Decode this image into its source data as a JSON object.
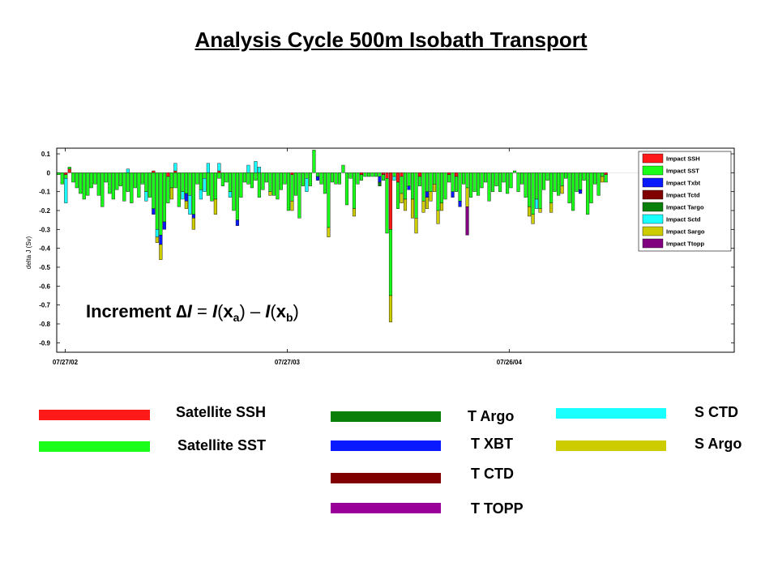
{
  "page": {
    "title": "Analysis Cycle 500m Isobath Transport"
  },
  "chart_data": {
    "type": "bar",
    "stacked": true,
    "ylabel": "delta J (Sv)",
    "ylim": [
      -0.95,
      0.13
    ],
    "yticks": [
      "0.1",
      "0",
      "-0.1",
      "-0.2",
      "-0.3",
      "-0.4",
      "-0.5",
      "-0.6",
      "-0.7",
      "-0.8",
      "-0.9"
    ],
    "xticks": [
      "07/27/02",
      "07/27/03",
      "07/26/04"
    ],
    "annotation": {
      "prefix": "Increment ",
      "delta": "∆",
      "I1": "I",
      "eq": " = ",
      "I2": "I",
      "lp1": "(",
      "xa": "x",
      "sub_a": "a",
      "rp1": ")",
      "minus": " – ",
      "I3": "I",
      "lp2": "(",
      "xb": "x",
      "sub_b": "b",
      "rp2": ")"
    },
    "legend_position": "top-right",
    "series": [
      {
        "name": "Impact SSH",
        "color": "#ff1a1a"
      },
      {
        "name": "Impact SST",
        "color": "#1aff1a"
      },
      {
        "name": "Impact Txbt",
        "color": "#0a1aff"
      },
      {
        "name": "Impact Tctd",
        "color": "#800000"
      },
      {
        "name": "Impact Targo",
        "color": "#0a800a"
      },
      {
        "name": "Impact Sctd",
        "color": "#1affff"
      },
      {
        "name": "Impact Sargo",
        "color": "#cccc00"
      },
      {
        "name": "Impact Ttopp",
        "color": "#800080"
      }
    ],
    "x_start": "2002-07-13",
    "x_end": "2005-07-31",
    "bar_days": 6,
    "bars": [
      {
        "date": "2002-07-13",
        "SST": -0.01
      },
      {
        "date": "2002-07-19",
        "SST": -0.06
      },
      {
        "date": "2002-07-25",
        "SST": -0.02,
        "Sctd": -0.13,
        "SSH": -0.01
      },
      {
        "date": "2002-07-31",
        "SST": 0.01,
        "SSH": 0.02
      },
      {
        "date": "2002-08-06",
        "SST": -0.05
      },
      {
        "date": "2002-08-12",
        "SST": -0.08
      },
      {
        "date": "2002-08-18",
        "SST": -0.11
      },
      {
        "date": "2002-08-24",
        "SST": -0.14
      },
      {
        "date": "2002-08-30",
        "SST": -0.12
      },
      {
        "date": "2002-09-05",
        "SST": -0.08
      },
      {
        "date": "2002-09-11",
        "SST": -0.06
      },
      {
        "date": "2002-09-17",
        "SST": -0.12
      },
      {
        "date": "2002-09-23",
        "SST": -0.18
      },
      {
        "date": "2002-09-29",
        "SST": -0.05
      },
      {
        "date": "2002-10-05",
        "SST": -0.11
      },
      {
        "date": "2002-10-11",
        "SST": -0.14
      },
      {
        "date": "2002-10-17",
        "SST": -0.09
      },
      {
        "date": "2002-10-23",
        "SST": -0.07
      },
      {
        "date": "2002-10-29",
        "SST": -0.15
      },
      {
        "date": "2002-11-04",
        "SST": -0.1,
        "Sctd": 0.02
      },
      {
        "date": "2002-11-10",
        "SST": -0.16
      },
      {
        "date": "2002-11-16",
        "SST": -0.08
      },
      {
        "date": "2002-11-22",
        "SST": -0.13
      },
      {
        "date": "2002-11-28",
        "SST": -0.06
      },
      {
        "date": "2002-12-04",
        "SST": -0.1,
        "Sctd": -0.05
      },
      {
        "date": "2002-12-10",
        "SST": -0.13
      },
      {
        "date": "2002-12-16",
        "SST": -0.19,
        "Txbt": -0.03,
        "SSH": 0.01
      },
      {
        "date": "2002-12-22",
        "SST": -0.3,
        "Sctd": -0.04,
        "Sargo": -0.03
      },
      {
        "date": "2002-12-28",
        "SST": -0.33,
        "Txbt": -0.05,
        "Sargo": -0.08
      },
      {
        "date": "2003-01-03",
        "SST": -0.26,
        "Txbt": -0.04
      },
      {
        "date": "2003-01-09",
        "SST": -0.14,
        "SSH": -0.02
      },
      {
        "date": "2003-01-15",
        "SST": -0.08,
        "Sargo": -0.06
      },
      {
        "date": "2003-01-21",
        "SST": -0.08,
        "Sctd": 0.04,
        "SSH": 0.01
      },
      {
        "date": "2003-01-27",
        "SST": -0.18
      },
      {
        "date": "2003-02-02",
        "SST": -0.1,
        "Sctd": -0.04
      },
      {
        "date": "2003-02-08",
        "SST": -0.11,
        "Txbt": -0.04,
        "Sargo": -0.04
      },
      {
        "date": "2003-02-14",
        "SST": -0.12,
        "Sctd": -0.1
      },
      {
        "date": "2003-02-20",
        "SST": -0.22,
        "Txbt": -0.02,
        "Sargo": -0.06
      },
      {
        "date": "2003-02-26",
        "SST": -0.06
      },
      {
        "date": "2003-03-04",
        "SST": -0.09,
        "Sctd": -0.05
      },
      {
        "date": "2003-03-10",
        "SST": -0.03,
        "Sctd": -0.07
      },
      {
        "date": "2003-03-16",
        "SST": -0.12,
        "Sctd": 0.05
      },
      {
        "date": "2003-03-22",
        "SST": -0.15
      },
      {
        "date": "2003-03-28",
        "SST": -0.14,
        "Sargo": -0.08
      },
      {
        "date": "2003-04-03",
        "SST": -0.03,
        "Sctd": 0.04,
        "SSH": 0.01
      },
      {
        "date": "2003-04-09",
        "SST": -0.07
      },
      {
        "date": "2003-04-15",
        "SST": -0.05
      },
      {
        "date": "2003-04-21",
        "SST": -0.1,
        "Sctd": -0.03
      },
      {
        "date": "2003-04-27",
        "SST": -0.2
      },
      {
        "date": "2003-05-03",
        "SST": -0.25,
        "Txbt": -0.03
      },
      {
        "date": "2003-05-09",
        "SST": -0.13
      },
      {
        "date": "2003-05-15",
        "SST": -0.05
      },
      {
        "date": "2003-05-21",
        "SST": -0.06,
        "Sctd": 0.04
      },
      {
        "date": "2003-05-27",
        "SST": -0.08
      },
      {
        "date": "2003-06-02",
        "SST": -0.04,
        "Sctd": 0.06
      },
      {
        "date": "2003-06-08",
        "SST": -0.13,
        "Sctd": 0.03
      },
      {
        "date": "2003-06-14",
        "SST": -0.09
      },
      {
        "date": "2003-06-20",
        "SST": -0.05
      },
      {
        "date": "2003-06-26",
        "SST": -0.1,
        "Sargo": -0.02
      },
      {
        "date": "2003-07-02",
        "SST": -0.12
      },
      {
        "date": "2003-07-08",
        "SST": -0.14
      },
      {
        "date": "2003-07-14",
        "SST": -0.09
      },
      {
        "date": "2003-07-20",
        "SST": -0.06
      },
      {
        "date": "2003-07-26",
        "SST": -0.2
      },
      {
        "date": "2003-08-01",
        "SST": -0.14,
        "Sargo": -0.05,
        "SSH": -0.01
      },
      {
        "date": "2003-08-07",
        "SST": -0.12
      },
      {
        "date": "2003-08-13",
        "SST": -0.24
      },
      {
        "date": "2003-08-19",
        "SST": -0.07
      },
      {
        "date": "2003-08-25",
        "SST": -0.03,
        "Sctd": -0.07
      },
      {
        "date": "2003-08-31",
        "SST": -0.07
      },
      {
        "date": "2003-09-06",
        "SST": 0.12
      },
      {
        "date": "2003-09-12",
        "SST": -0.02,
        "Txbt": -0.02
      },
      {
        "date": "2003-09-18",
        "SST": -0.06
      },
      {
        "date": "2003-09-24",
        "SST": -0.11
      },
      {
        "date": "2003-09-30",
        "SST": -0.29,
        "Sargo": -0.05
      },
      {
        "date": "2003-10-06",
        "SST": -0.05
      },
      {
        "date": "2003-10-12",
        "SST": -0.06
      },
      {
        "date": "2003-10-18",
        "SST": -0.06
      },
      {
        "date": "2003-10-24",
        "SST": 0.04
      },
      {
        "date": "2003-10-30",
        "SST": -0.17
      },
      {
        "date": "2003-11-05",
        "SST": -0.03
      },
      {
        "date": "2003-11-11",
        "SST": -0.19,
        "Sargo": -0.04
      },
      {
        "date": "2003-11-17",
        "SST": -0.06
      },
      {
        "date": "2003-11-23",
        "SST": -0.03,
        "SSH": -0.01
      },
      {
        "date": "2003-11-29",
        "SST": -0.02
      },
      {
        "date": "2003-12-05",
        "SST": -0.02
      },
      {
        "date": "2003-12-11",
        "SST": -0.02
      },
      {
        "date": "2003-12-17",
        "SST": -0.02
      },
      {
        "date": "2003-12-23",
        "SST": -0.02,
        "Txbt": -0.03,
        "Targo": -0.02
      },
      {
        "date": "2003-12-29",
        "SST": -0.03,
        "SSH": -0.01
      },
      {
        "date": "2004-01-04",
        "SST": -0.29,
        "SSH": -0.03
      },
      {
        "date": "2004-01-10",
        "SSH": -0.3,
        "SST": -0.35,
        "Sargo": -0.14
      },
      {
        "date": "2004-01-16",
        "SST": -0.02,
        "Sctd": -0.02
      },
      {
        "date": "2004-01-22",
        "SST": -0.14,
        "SSH": -0.05
      },
      {
        "date": "2004-01-28",
        "SST": -0.09,
        "Sargo": -0.05,
        "SSH": -0.02
      },
      {
        "date": "2004-02-03",
        "SST": -0.14,
        "Sargo": -0.06
      },
      {
        "date": "2004-02-09",
        "SST": -0.07,
        "Txbt": -0.02
      },
      {
        "date": "2004-02-15",
        "SST": -0.14,
        "Sargo": -0.1
      },
      {
        "date": "2004-02-21",
        "SST": -0.24,
        "Sargo": -0.08
      },
      {
        "date": "2004-02-27",
        "SST": -0.05,
        "SSH": -0.02
      },
      {
        "date": "2004-03-04",
        "SST": -0.15,
        "Sargo": -0.06
      },
      {
        "date": "2004-03-10",
        "SST": -0.1,
        "Txbt": -0.03,
        "Sargo": -0.06
      },
      {
        "date": "2004-03-16",
        "SST": -0.1,
        "Sargo": -0.05
      },
      {
        "date": "2004-03-22",
        "SST": -0.06,
        "Sargo": -0.04
      },
      {
        "date": "2004-03-28",
        "SST": -0.2,
        "Sargo": -0.07
      },
      {
        "date": "2004-04-03",
        "SST": -0.16,
        "Sargo": -0.04
      },
      {
        "date": "2004-04-09",
        "SST": -0.14
      },
      {
        "date": "2004-04-15",
        "SST": -0.04,
        "SSH": -0.01
      },
      {
        "date": "2004-04-21",
        "SST": -0.1,
        "Txbt": -0.03
      },
      {
        "date": "2004-04-27",
        "SST": -0.08,
        "SSH": -0.02
      },
      {
        "date": "2004-05-03",
        "SST": -0.15,
        "Txbt": -0.03
      },
      {
        "date": "2004-05-09",
        "SST": -0.06
      },
      {
        "date": "2004-05-15",
        "Ttopp": -0.15,
        "Sargo": -0.1,
        "SST": -0.08
      },
      {
        "date": "2004-05-21",
        "SST": -0.13
      },
      {
        "date": "2004-05-27",
        "SST": -0.1
      },
      {
        "date": "2004-06-02",
        "SST": -0.12
      },
      {
        "date": "2004-06-08",
        "SST": -0.08
      },
      {
        "date": "2004-06-14",
        "SST": -0.05
      },
      {
        "date": "2004-06-20",
        "SST": -0.15
      },
      {
        "date": "2004-06-26",
        "SST": -0.1
      },
      {
        "date": "2004-07-02",
        "SST": -0.07
      },
      {
        "date": "2004-07-08",
        "SST": -0.1
      },
      {
        "date": "2004-07-14",
        "SST": -0.05
      },
      {
        "date": "2004-07-20",
        "SST": -0.11
      },
      {
        "date": "2004-07-26",
        "SST": -0.08
      },
      {
        "date": "2004-08-01",
        "SST": 0.01
      },
      {
        "date": "2004-08-07",
        "SST": -0.1
      },
      {
        "date": "2004-08-13",
        "SST": -0.06
      },
      {
        "date": "2004-08-19",
        "SST": -0.13
      },
      {
        "date": "2004-08-25",
        "SST": -0.18,
        "Sargo": -0.05
      },
      {
        "date": "2004-08-31",
        "SST": -0.22,
        "Sargo": -0.05
      },
      {
        "date": "2004-09-06",
        "SST": -0.14,
        "Sctd": -0.05
      },
      {
        "date": "2004-09-12",
        "SST": -0.19,
        "Sargo": -0.02
      },
      {
        "date": "2004-09-18",
        "SST": -0.09
      },
      {
        "date": "2004-09-24",
        "SST": -0.04
      },
      {
        "date": "2004-09-30",
        "SST": -0.16,
        "Sargo": -0.05
      },
      {
        "date": "2004-10-06",
        "SST": -0.1
      },
      {
        "date": "2004-10-12",
        "SST": -0.12
      },
      {
        "date": "2004-10-18",
        "SST": -0.07,
        "Sargo": -0.04
      },
      {
        "date": "2004-10-24",
        "SST": -0.03
      },
      {
        "date": "2004-10-30",
        "SST": -0.16
      },
      {
        "date": "2004-11-05",
        "SST": -0.2
      },
      {
        "date": "2004-11-11",
        "SST": -0.1
      },
      {
        "date": "2004-11-17",
        "SST": -0.09,
        "Txbt": -0.02
      },
      {
        "date": "2004-11-23",
        "SST": -0.04
      },
      {
        "date": "2004-11-29",
        "SST": -0.22
      },
      {
        "date": "2004-12-05",
        "SST": -0.16
      },
      {
        "date": "2004-12-11",
        "SST": -0.06
      },
      {
        "date": "2004-12-17",
        "SST": -0.12
      },
      {
        "date": "2004-12-23",
        "SST": -0.02,
        "Sargo": -0.03
      },
      {
        "date": "2004-12-29",
        "SST": -0.04,
        "SSH": -0.01
      }
    ]
  },
  "bottom_legend": [
    {
      "label": "Satellite SSH",
      "color": "#ff1a1a"
    },
    {
      "label": "Satellite SST",
      "color": "#1aff1a"
    },
    {
      "label": "T Argo",
      "color": "#0a800a"
    },
    {
      "label": "T XBT",
      "color": "#0a1aff"
    },
    {
      "label": "T CTD",
      "color": "#800000"
    },
    {
      "label": "T TOPP",
      "color": "#990099"
    },
    {
      "label": "S CTD",
      "color": "#1affff"
    },
    {
      "label": "S Argo",
      "color": "#cccc00"
    }
  ]
}
